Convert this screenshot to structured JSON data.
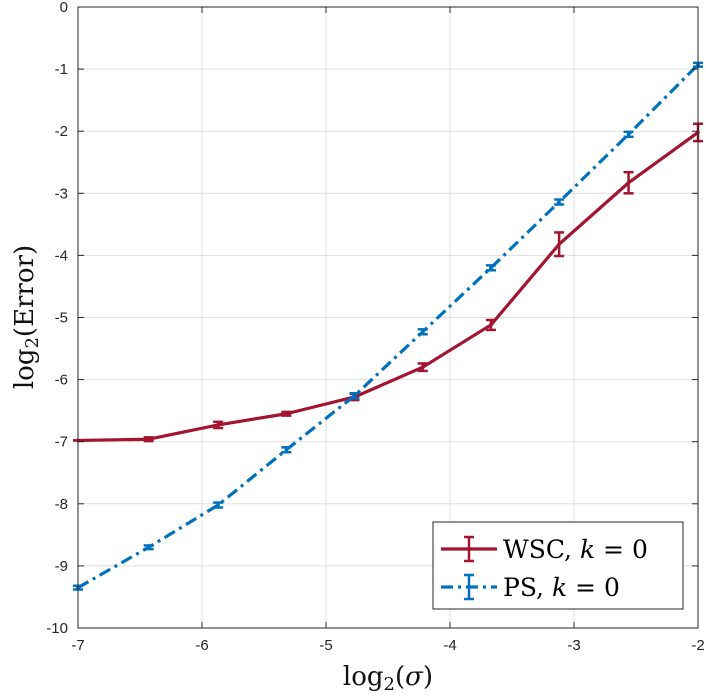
{
  "chart_data": {
    "type": "line",
    "title": "",
    "xlabel": "log2(σ)",
    "ylabel": "log2(Error)",
    "xlim": [
      -7,
      -2
    ],
    "ylim": [
      -10,
      0
    ],
    "xticks": [
      -7,
      -6,
      -5,
      -4,
      -3,
      -2
    ],
    "yticks": [
      0,
      -1,
      -2,
      -3,
      -4,
      -5,
      -6,
      -7,
      -8,
      -9,
      -10
    ],
    "grid": true,
    "legend_position": "bottom-right",
    "series": [
      {
        "name": "WSC, k = 0",
        "label_text": "WSC,",
        "label_var": "k",
        "label_rel": "= 0",
        "color": "#A2142F",
        "linestyle": "solid",
        "x": [
          -7.0,
          -6.43,
          -5.87,
          -5.32,
          -4.77,
          -4.22,
          -3.67,
          -3.12,
          -2.56,
          -2.0
        ],
        "y": [
          -6.98,
          -6.96,
          -6.73,
          -6.55,
          -6.28,
          -5.8,
          -5.12,
          -3.82,
          -2.83,
          -2.02
        ],
        "err": [
          0.0,
          0.03,
          0.05,
          0.03,
          0.05,
          0.06,
          0.08,
          0.19,
          0.17,
          0.14
        ]
      },
      {
        "name": "PS, k = 0",
        "label_text": "PS,",
        "label_var": "k",
        "label_rel": "= 0",
        "color": "#0072BD",
        "linestyle": "dashdot",
        "x": [
          -7.0,
          -6.43,
          -5.87,
          -5.32,
          -4.77,
          -4.22,
          -3.67,
          -3.12,
          -2.56,
          -2.0
        ],
        "y": [
          -9.35,
          -8.7,
          -8.02,
          -7.13,
          -6.26,
          -5.23,
          -4.2,
          -3.14,
          -2.05,
          -0.93
        ],
        "err": [
          0.03,
          0.03,
          0.04,
          0.04,
          0.04,
          0.04,
          0.04,
          0.04,
          0.04,
          0.03
        ]
      }
    ]
  }
}
